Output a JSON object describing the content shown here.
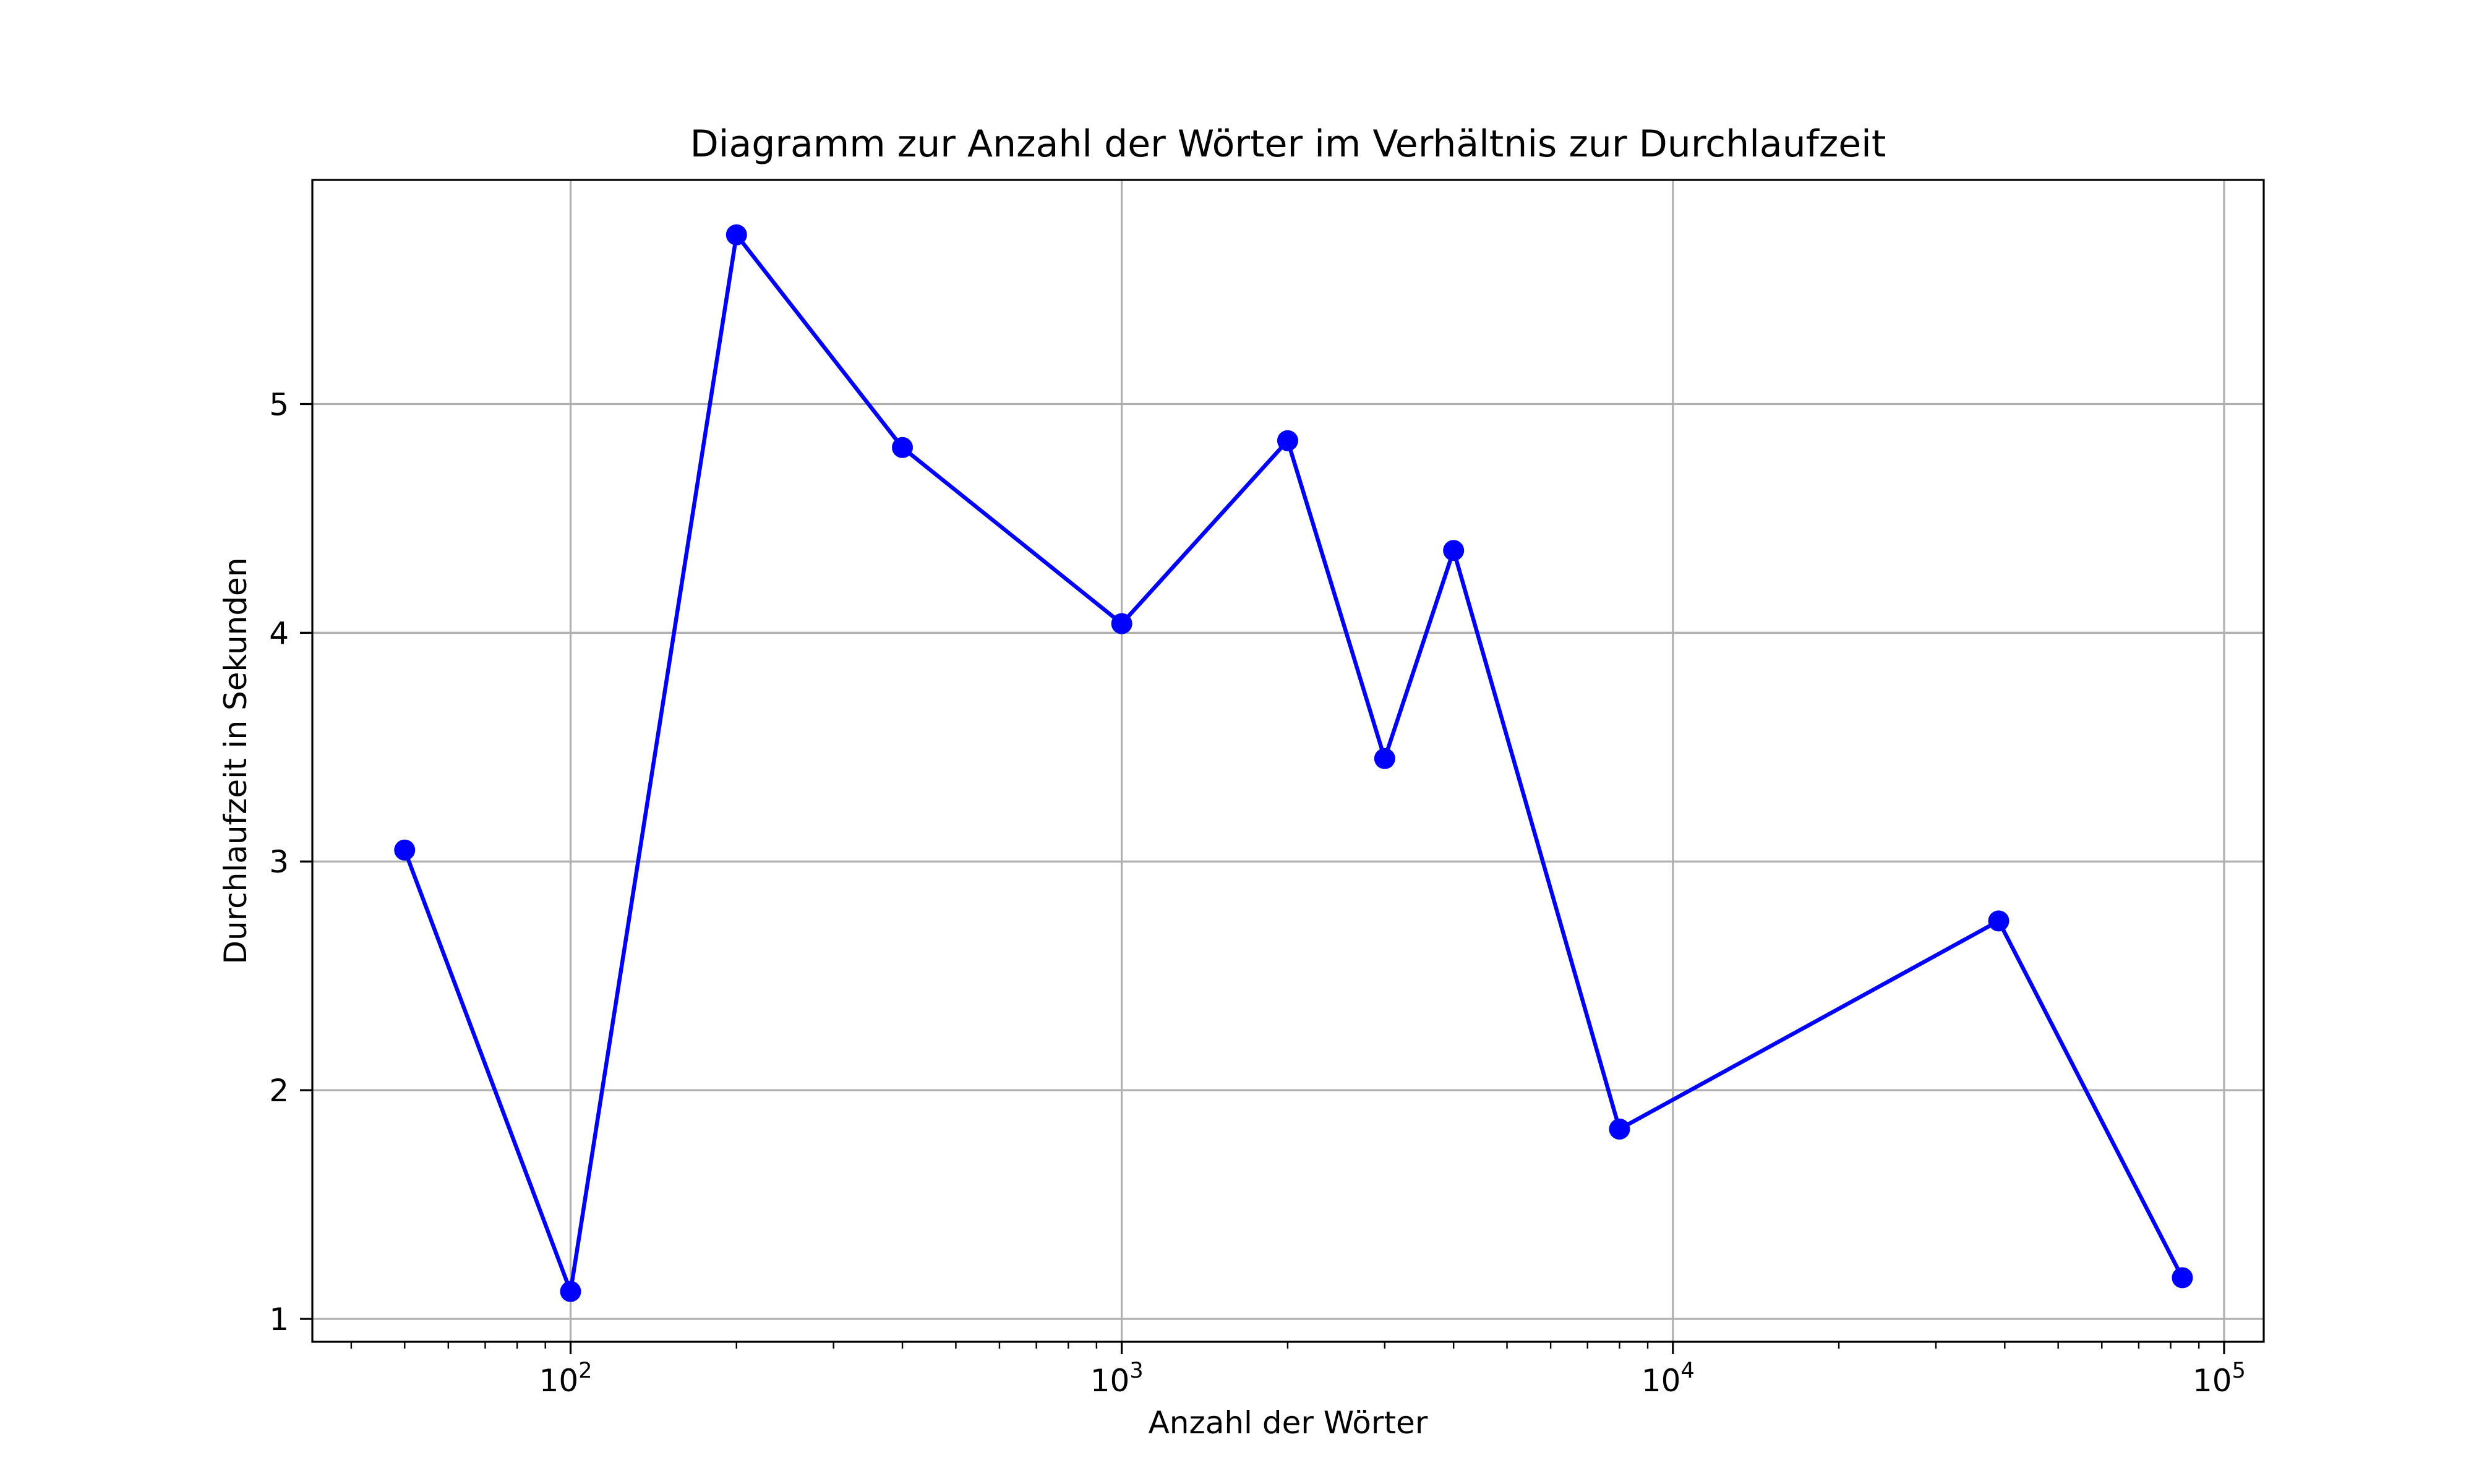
{
  "chart_data": {
    "type": "line",
    "title": "Diagramm zur Anzahl der Wörter im Verhältnis zur Durchlaufzeit",
    "xlabel": "Anzahl der Wörter",
    "ylabel": "Durchlaufzeit in Sekunden",
    "x_scale": "log",
    "xlim": [
      34,
      118000
    ],
    "ylim": [
      0.9,
      5.98
    ],
    "x_ticks": [
      {
        "value": 100,
        "base": "10",
        "exp": "2"
      },
      {
        "value": 1000,
        "base": "10",
        "exp": "3"
      },
      {
        "value": 10000,
        "base": "10",
        "exp": "4"
      },
      {
        "value": 100000,
        "base": "10",
        "exp": "5"
      }
    ],
    "y_ticks": [
      1,
      2,
      3,
      4,
      5
    ],
    "grid": true,
    "series": [
      {
        "color": "#0000ff",
        "marker": "circle",
        "x": [
          50,
          100,
          200,
          400,
          1000,
          2000,
          3000,
          4000,
          8000,
          39000,
          84000
        ],
        "y": [
          3.05,
          1.12,
          5.74,
          4.81,
          4.04,
          4.84,
          3.45,
          4.36,
          1.83,
          2.74,
          1.18
        ]
      }
    ]
  }
}
